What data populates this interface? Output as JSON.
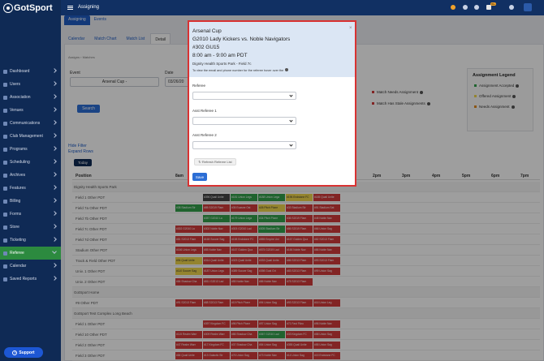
{
  "app": {
    "logo": "GotSport",
    "title": "Assigning",
    "notification_badge": "99+"
  },
  "sidebar": {
    "items": [
      {
        "label": "Dashboard",
        "icon": "dashboard-icon"
      },
      {
        "label": "Users",
        "icon": "users-icon"
      },
      {
        "label": "Association",
        "icon": "association-icon"
      },
      {
        "label": "Venues",
        "icon": "venues-icon"
      },
      {
        "label": "Communications",
        "icon": "communications-icon"
      },
      {
        "label": "Club Management",
        "icon": "club-icon"
      },
      {
        "label": "Programs",
        "icon": "programs-icon"
      },
      {
        "label": "Scheduling",
        "icon": "scheduling-icon"
      },
      {
        "label": "Archives",
        "icon": "archives-icon"
      },
      {
        "label": "Features",
        "icon": "features-icon"
      },
      {
        "label": "Billing",
        "icon": "billing-icon"
      },
      {
        "label": "Forms",
        "icon": "forms-icon"
      },
      {
        "label": "Store",
        "icon": "store-icon"
      },
      {
        "label": "Ticketing",
        "icon": "ticketing-icon"
      },
      {
        "label": "Referee",
        "icon": "referee-icon",
        "active": true
      },
      {
        "label": "Calendar",
        "icon": "calendar-icon"
      },
      {
        "label": "Saved Reports",
        "icon": "reports-icon"
      }
    ],
    "support_label": "Support"
  },
  "tabs_top": [
    "Assigning",
    "Events"
  ],
  "tabs_sub": [
    "Calendar",
    "Match Chart",
    "Match List",
    "Detail"
  ],
  "breadcrumb": [
    "Assigns",
    "Matches"
  ],
  "filters": {
    "event_label": "Event",
    "event_value": "Arsenal Cup -",
    "date_label": "Date",
    "date_value": "03/26/20",
    "search_label": "Search"
  },
  "links": {
    "hide_filter": "Hide Filter",
    "expand_rows": "Expand Rows"
  },
  "today_label": "Today",
  "needs": {
    "match_needs": "Match Needs Assignment",
    "stale": "Match Has Stale Assignments"
  },
  "legend": {
    "title": "Assignment Legend",
    "items": [
      {
        "label": "Assignment Accepted",
        "color": "#33a04b"
      },
      {
        "label": "Offered Assignment",
        "color": "#efd54c"
      },
      {
        "label": "Needs Assignment",
        "color": "#e08a1e"
      }
    ]
  },
  "grid": {
    "position_header": "Position",
    "time_headers": [
      "8am",
      "2pm",
      "3pm",
      "4pm",
      "5pm",
      "6pm",
      "7pm"
    ],
    "rows": [
      {
        "label": "Dignity Health Sports Park",
        "group": true,
        "cells": []
      },
      {
        "label": "Field 1 Other PDT",
        "cells": [
          {
            "t": "#396 Quail Unite",
            "c": "dark",
            "s": 4
          },
          {
            "t": "#181 Union Legs",
            "c": "green",
            "s": 5
          },
          {
            "t": "#188 Union Lega",
            "c": "green",
            "s": 6
          },
          {
            "t": "#196 Endstone FC",
            "c": "yellow",
            "s": 7
          },
          {
            "t": "#185 Quail Unite",
            "c": "red",
            "s": 8
          }
        ]
      },
      {
        "label": "Field 7a Other PDT",
        "cells": [
          {
            "t": "#38 Stadium Str",
            "c": "green",
            "s": 3
          },
          {
            "t": "#85 S2019 Flam",
            "c": "red",
            "s": 4
          },
          {
            "t": "#35 Ecasne Ost",
            "c": "red",
            "s": 5
          },
          {
            "t": "#26 Pitch Pione",
            "c": "yellow",
            "s": 6
          },
          {
            "t": "#33 Stadium Str",
            "c": "red",
            "s": 7
          },
          {
            "t": "#51 Stadium Sat",
            "c": "red",
            "s": 8
          }
        ]
      },
      {
        "label": "Field 7b Other PDT",
        "cells": [
          {
            "t": "#357 G2010 La",
            "c": "green",
            "s": 4
          },
          {
            "t": "#179 Union Lega",
            "c": "green",
            "s": 5
          },
          {
            "t": "#34 Pitch Pione",
            "c": "green",
            "s": 6
          },
          {
            "t": "#36 S2019 Flam",
            "c": "red",
            "s": 7
          },
          {
            "t": "#48 Noble Nav",
            "c": "red",
            "s": 8
          }
        ]
      },
      {
        "label": "Field 7c Other PDT",
        "cells": [
          {
            "t": "#302 G2010 La",
            "c": "red",
            "s": 3
          },
          {
            "t": "#302 Noble Nav",
            "c": "red",
            "s": 4
          },
          {
            "t": "#303 G2010 Lad",
            "c": "red",
            "s": 5
          },
          {
            "t": "#305 Stadium Str",
            "c": "green",
            "s": 6
          },
          {
            "t": "#86 S2019 Flam",
            "c": "red",
            "s": 7
          },
          {
            "t": "#66 Union Sag",
            "c": "red",
            "s": 8
          }
        ]
      },
      {
        "label": "Field 7d Other PDT",
        "cells": [
          {
            "t": "#81 S2013 Flam",
            "c": "red",
            "s": 3
          },
          {
            "t": "#168 Soccer Sag",
            "c": "red",
            "s": 4
          },
          {
            "t": "#158 Endstone FC",
            "c": "red",
            "s": 5
          },
          {
            "t": "#555 Empire Uni",
            "c": "red",
            "s": 6
          },
          {
            "t": "#167 Golden Qua",
            "c": "red",
            "s": 7
          },
          {
            "t": "#82 S2013 Flam",
            "c": "red",
            "s": 8
          }
        ]
      },
      {
        "label": "Stadium Other PDT",
        "cells": [
          {
            "t": "#166 Union Legs",
            "c": "red",
            "s": 3
          },
          {
            "t": "#55 Noble Nav",
            "c": "red",
            "s": 4
          },
          {
            "t": "#167 Golden Qua",
            "c": "red",
            "s": 5
          },
          {
            "t": "#575 G2019 Lad",
            "c": "red",
            "s": 6
          },
          {
            "t": "#166 Noble Nav",
            "c": "red",
            "s": 7
          },
          {
            "t": "#86 Noble Nav",
            "c": "red",
            "s": 8
          }
        ]
      },
      {
        "label": "Track & Field Other PDT",
        "cells": [
          {
            "t": "#94 Quail Unite",
            "c": "yellow",
            "s": 3
          },
          {
            "t": "#314 Quail Unite",
            "c": "red",
            "s": 4
          },
          {
            "t": "#323 Quail Unite",
            "c": "red",
            "s": 5
          },
          {
            "t": "#333 Quail Unite",
            "c": "red",
            "s": 6
          },
          {
            "t": "#86 S2013 Flam",
            "c": "red",
            "s": 7
          },
          {
            "t": "#93 S2013 Flam",
            "c": "red",
            "s": 8
          }
        ]
      },
      {
        "label": "Univ. 1 Other PDT",
        "cells": [
          {
            "t": "#110 Soccer Sag",
            "c": "yellow",
            "s": 3
          },
          {
            "t": "#187 Union Legs",
            "c": "red",
            "s": 4
          },
          {
            "t": "#389 Soccer Sag",
            "c": "red",
            "s": 5
          },
          {
            "t": "#398 Goal Grt",
            "c": "red",
            "s": 6
          },
          {
            "t": "#83 S2013 Flam",
            "c": "red",
            "s": 7
          },
          {
            "t": "#99 Union Sag",
            "c": "red",
            "s": 8
          }
        ]
      },
      {
        "label": "Univ. 2 Other PDT",
        "cells": [
          {
            "t": "#84 Shadow Cha",
            "c": "red",
            "s": 3
          },
          {
            "t": "#811 G2013 Lad",
            "c": "red",
            "s": 4
          },
          {
            "t": "#55 Noble Nav",
            "c": "red",
            "s": 5
          },
          {
            "t": "#86 Noble Nav",
            "c": "red",
            "s": 6
          },
          {
            "t": "#75 S2013 Flam",
            "c": "red",
            "s": 7
          }
        ]
      },
      {
        "label": "GotSport Home",
        "group": true,
        "cells": []
      },
      {
        "label": "#9 Other PDT",
        "cells": [
          {
            "t": "#91 S2013 Flam",
            "c": "red",
            "s": 3
          },
          {
            "t": "#88 S2013 Flam",
            "c": "red",
            "s": 4
          },
          {
            "t": "#19 Pitch Pione",
            "c": "red",
            "s": 5
          },
          {
            "t": "#94 Union Sag",
            "c": "red",
            "s": 6
          },
          {
            "t": "#93 S2013 Flam",
            "c": "red",
            "s": 7
          },
          {
            "t": "#16 Union Leg",
            "c": "red",
            "s": 8
          }
        ]
      },
      {
        "label": "GotSport Test Complex Long Beach",
        "group": true,
        "cells": []
      },
      {
        "label": "Field 1 Other PDT",
        "cells": [
          {
            "t": "#397 Kingdom FC",
            "c": "red",
            "s": 4
          },
          {
            "t": "#96 Pitch Pione",
            "c": "red",
            "s": 5
          },
          {
            "t": "#97 Union Sag",
            "c": "red",
            "s": 6
          },
          {
            "t": "#71 Fast Fitzu",
            "c": "red",
            "s": 7
          },
          {
            "t": "#96 Noble Nav",
            "c": "red",
            "s": 8
          }
        ]
      },
      {
        "label": "Field 10 Other PDT",
        "cells": [
          {
            "t": "#115 Realm Warr",
            "c": "red",
            "s": 3
          },
          {
            "t": "#309 Realm Warr",
            "c": "red",
            "s": 4
          },
          {
            "t": "#86 Shadow Cha",
            "c": "red",
            "s": 5
          },
          {
            "t": "#367 G2010 Lad",
            "c": "green",
            "s": 6
          },
          {
            "t": "#33 Kingdom FC",
            "c": "red",
            "s": 7
          },
          {
            "t": "#58 Union Sag",
            "c": "red",
            "s": 8
          }
        ]
      },
      {
        "label": "Field 2 Other PDT",
        "cells": [
          {
            "t": "#47 Realm Warr",
            "c": "red",
            "s": 3
          },
          {
            "t": "#17 Kingdom FC",
            "c": "red",
            "s": 4
          },
          {
            "t": "#37 Shadow Cha",
            "c": "red",
            "s": 5
          },
          {
            "t": "#54 Union Sag",
            "c": "red",
            "s": 6
          },
          {
            "t": "#355 Quail Unite",
            "c": "red",
            "s": 7
          },
          {
            "t": "#55 Union Sag",
            "c": "red",
            "s": 8
          }
        ]
      },
      {
        "label": "Field 3 Other PDT",
        "cells": [
          {
            "t": "#84 Quail Unite",
            "c": "red",
            "s": 3
          },
          {
            "t": "#13 Galactic Str",
            "c": "red",
            "s": 4
          },
          {
            "t": "#76 Union Sag",
            "c": "red",
            "s": 5
          },
          {
            "t": "#73 Noble Nav",
            "c": "red",
            "s": 6
          },
          {
            "t": "#14 Union Sag",
            "c": "red",
            "s": 7
          },
          {
            "t": "#15 Endstone FC",
            "c": "red",
            "s": 8
          }
        ]
      }
    ]
  },
  "modal": {
    "event": "Arsenal Cup",
    "match": "G2010 Lady Kickers vs. Noble Navigators",
    "code": "#302 GU15",
    "time": "8:00 am - 9:00 am PDT",
    "venue": "Dignity Health Sports Park - Field 7c",
    "hint": "To view the email and phone number for the referee hover over the",
    "close": "×",
    "fields": [
      {
        "label": "Referee"
      },
      {
        "label": "Asst Referee 1"
      },
      {
        "label": "Asst Referee 2"
      }
    ],
    "refresh_label": "Refresh Referee List",
    "save_label": "Save"
  },
  "colors": {
    "sidebar": "#0f2a55",
    "accent": "#1f5cc4",
    "active_nav": "#2c8a3f",
    "highlight_border": "#d83232"
  }
}
